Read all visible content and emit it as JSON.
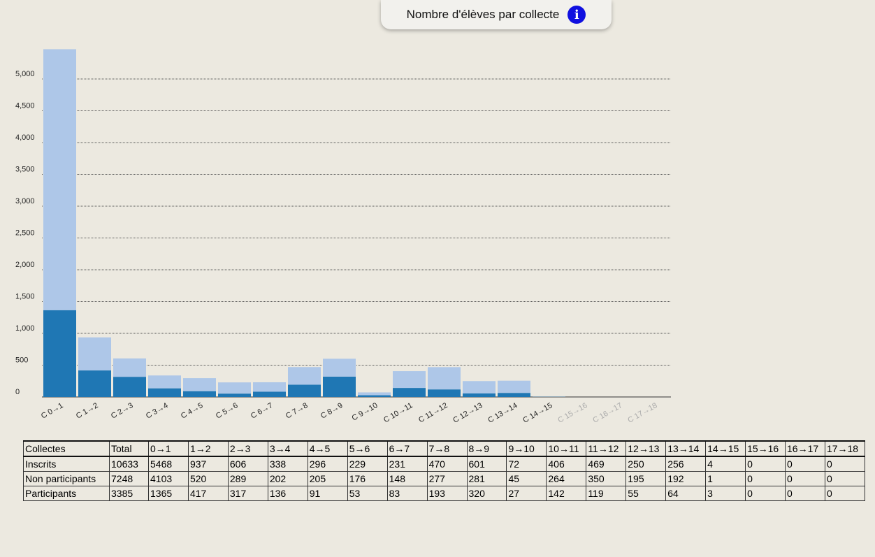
{
  "header": {
    "title": "Nombre d'élèves par collecte",
    "icon": "i"
  },
  "chart_data": {
    "type": "bar",
    "stacked": true,
    "categories": [
      "C 0→1",
      "C 1→2",
      "C 2→3",
      "C 3→4",
      "C 4→5",
      "C 5→6",
      "C 6→7",
      "C 7→8",
      "C 8→9",
      "C 9→10",
      "C 10→11",
      "C 11→12",
      "C 12→13",
      "C 13→14",
      "C 14→15",
      "C 15→16",
      "C 16→17",
      "C 17→18"
    ],
    "series": [
      {
        "color": "#1f77b4",
        "values": [
          1365,
          417,
          317,
          136,
          91,
          53,
          83,
          193,
          320,
          27,
          142,
          119,
          55,
          64,
          3,
          0,
          0,
          0
        ]
      },
      {
        "color": "#aec7e8",
        "values": [
          4103,
          520,
          289,
          202,
          205,
          176,
          148,
          277,
          281,
          45,
          264,
          350,
          195,
          192,
          1,
          0,
          0,
          0
        ]
      }
    ],
    "ylim": [
      0,
      5500
    ],
    "yticks": [
      0,
      500,
      {
        "value": 1000,
        "label": "1,000"
      },
      {
        "value": 1500,
        "label": "1,500"
      },
      {
        "value": 2000,
        "label": "2,000"
      },
      {
        "value": 2500,
        "label": "2,500"
      },
      {
        "value": 3000,
        "label": "3,000"
      },
      {
        "value": 3500,
        "label": "3,500"
      },
      {
        "value": 4000,
        "label": "4,000"
      },
      {
        "value": 4500,
        "label": "4,500"
      },
      {
        "value": 5000,
        "label": "5,000"
      }
    ],
    "grid": true
  },
  "table": {
    "header": [
      "Collectes",
      "Total",
      "0→1",
      "1→2",
      "2→3",
      "3→4",
      "4→5",
      "5→6",
      "6→7",
      "7→8",
      "8→9",
      "9→10",
      "10→11",
      "11→12",
      "12→13",
      "13→14",
      "14→15",
      "15→16",
      "16→17",
      "17→18"
    ],
    "rows": [
      [
        "Inscrits",
        "10633",
        "5468",
        "937",
        "606",
        "338",
        "296",
        "229",
        "231",
        "470",
        "601",
        "72",
        "406",
        "469",
        "250",
        "256",
        "4",
        "0",
        "0",
        "0"
      ],
      [
        "Non participants",
        "7248",
        "4103",
        "520",
        "289",
        "202",
        "205",
        "176",
        "148",
        "277",
        "281",
        "45",
        "264",
        "350",
        "195",
        "192",
        "1",
        "0",
        "0",
        "0"
      ],
      [
        "Participants",
        "3385",
        "1365",
        "417",
        "317",
        "136",
        "91",
        "53",
        "83",
        "193",
        "320",
        "27",
        "142",
        "119",
        "55",
        "64",
        "3",
        "0",
        "0",
        "0"
      ]
    ]
  }
}
